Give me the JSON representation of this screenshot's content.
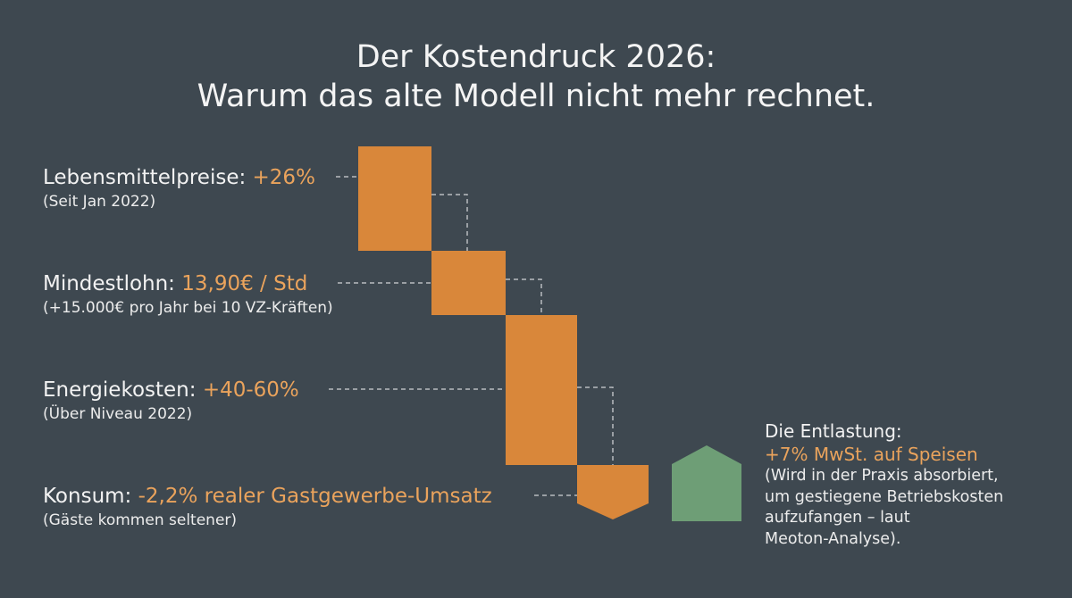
{
  "title": {
    "line1": "Der Kostendruck 2026:",
    "line2": "Warum das alte Modell nicht mehr rechnet."
  },
  "factors": [
    {
      "label": "Lebensmittelpreise: ",
      "value": "+26%",
      "note": "(Seit Jan 2022)"
    },
    {
      "label": "Mindestlohn: ",
      "value": "13,90€ / Std",
      "note": "(+15.000€ pro Jahr bei 10 VZ-Kräften)"
    },
    {
      "label": "Energiekosten: ",
      "value": "+40-60%",
      "note": "(Über Niveau 2022)"
    },
    {
      "label": "Konsum: ",
      "value": "-2,2% realer Gastgewerbe-Umsatz",
      "note": "(Gäste kommen seltener)"
    }
  ],
  "relief": {
    "heading": "Die Entlastung:",
    "value": "+7% MwSt. auf Speisen",
    "note": "(Wird in der Praxis absorbiert,\num gestiegene Betriebskosten\naufzufangen – laut\nMeoton-Analyse)."
  },
  "colors": {
    "background": "#3e4850",
    "cost": "#d9873a",
    "relief": "#6e9e76",
    "accent_text": "#eaa35c",
    "connector": "#b8bcc0"
  }
}
